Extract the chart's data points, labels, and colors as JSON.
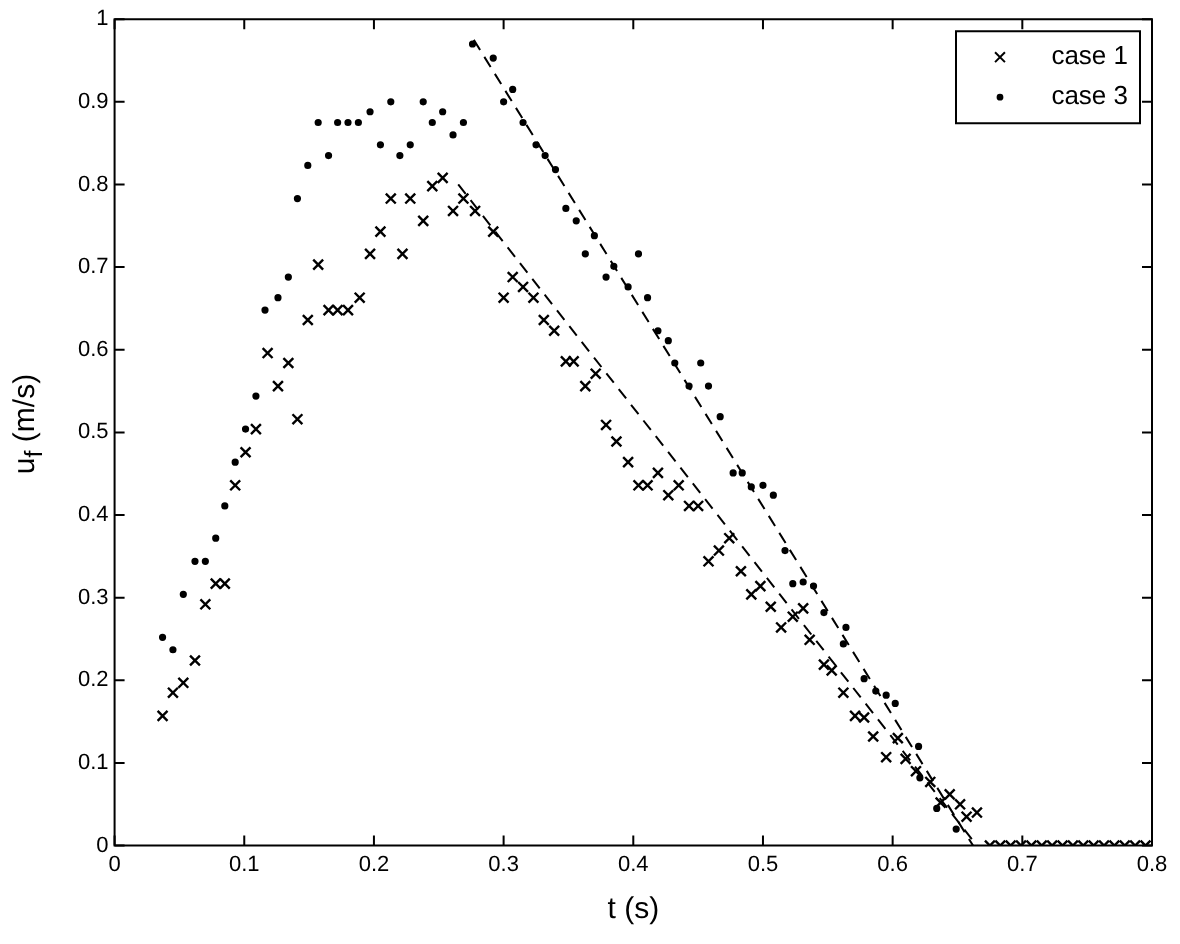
{
  "chart_data": {
    "type": "scatter",
    "xlabel": "t (s)",
    "ylabel": "u$_{f}$ (m/s)",
    "xlim": [
      0,
      0.8
    ],
    "xticks": [
      0,
      0.1,
      0.2,
      0.3,
      0.4,
      0.5,
      0.6,
      0.7,
      0.8
    ],
    "ylim": [
      0,
      1
    ],
    "yticks": [
      0,
      0.1,
      0.2,
      0.3,
      0.4,
      0.5,
      0.6,
      0.7,
      0.8,
      0.9,
      1
    ],
    "grid": false,
    "legend": "top right",
    "series": [
      {
        "name": "case 1",
        "marker": "cross",
        "color": "#000000",
        "x": [
          0.037,
          0.045,
          0.053,
          0.062,
          0.07,
          0.078,
          0.085,
          0.093,
          0.101,
          0.109,
          0.118,
          0.126,
          0.134,
          0.141,
          0.149,
          0.157,
          0.165,
          0.172,
          0.18,
          0.189,
          0.197,
          0.205,
          0.213,
          0.222,
          0.228,
          0.238,
          0.245,
          0.253,
          0.261,
          0.269,
          0.278,
          0.292,
          0.3,
          0.307,
          0.315,
          0.323,
          0.331,
          0.339,
          0.348,
          0.354,
          0.363,
          0.371,
          0.379,
          0.387,
          0.396,
          0.404,
          0.411,
          0.419,
          0.427,
          0.435,
          0.443,
          0.45,
          0.458,
          0.466,
          0.474,
          0.483,
          0.491,
          0.498,
          0.506,
          0.514,
          0.523,
          0.531,
          0.536,
          0.547,
          0.553,
          0.562,
          0.571,
          0.578,
          0.585,
          0.595,
          0.604,
          0.61,
          0.618,
          0.629,
          0.637,
          0.644,
          0.652,
          0.657,
          0.665,
          0.675,
          0.683,
          0.691,
          0.699,
          0.707,
          0.715,
          0.723,
          0.731,
          0.739,
          0.747,
          0.755,
          0.763,
          0.771,
          0.779,
          0.787,
          0.795
        ],
        "values": [
          0.157,
          0.185,
          0.197,
          0.224,
          0.292,
          0.317,
          0.317,
          0.436,
          0.476,
          0.504,
          0.596,
          0.556,
          0.584,
          0.516,
          0.636,
          0.703,
          0.648,
          0.648,
          0.648,
          0.663,
          0.716,
          0.743,
          0.783,
          0.716,
          0.783,
          0.756,
          0.798,
          0.808,
          0.768,
          0.783,
          0.768,
          0.743,
          0.663,
          0.688,
          0.676,
          0.663,
          0.636,
          0.623,
          0.586,
          0.586,
          0.556,
          0.571,
          0.509,
          0.489,
          0.464,
          0.436,
          0.436,
          0.451,
          0.424,
          0.436,
          0.411,
          0.411,
          0.344,
          0.357,
          0.372,
          0.332,
          0.304,
          0.314,
          0.289,
          0.264,
          0.277,
          0.287,
          0.249,
          0.219,
          0.212,
          0.185,
          0.157,
          0.155,
          0.132,
          0.107,
          0.13,
          0.105,
          0.09,
          0.077,
          0.052,
          0.062,
          0.05,
          0.035,
          0.04,
          0,
          0,
          0,
          0,
          0,
          0,
          0,
          0,
          0,
          0,
          0,
          0,
          0,
          0,
          0,
          0
        ]
      },
      {
        "name": "case 3",
        "marker": "circle",
        "color": "#000000",
        "x": [
          0.037,
          0.045,
          0.053,
          0.062,
          0.07,
          0.078,
          0.085,
          0.093,
          0.101,
          0.109,
          0.116,
          0.126,
          0.134,
          0.141,
          0.149,
          0.157,
          0.165,
          0.172,
          0.18,
          0.188,
          0.197,
          0.205,
          0.213,
          0.22,
          0.228,
          0.238,
          0.245,
          0.253,
          0.261,
          0.269,
          0.276,
          0.292,
          0.3,
          0.307,
          0.315,
          0.325,
          0.332,
          0.34,
          0.348,
          0.356,
          0.363,
          0.37,
          0.379,
          0.385,
          0.396,
          0.404,
          0.411,
          0.419,
          0.427,
          0.432,
          0.443,
          0.452,
          0.458,
          0.467,
          0.477,
          0.484,
          0.491,
          0.5,
          0.508,
          0.517,
          0.523,
          0.531,
          0.539,
          0.547,
          0.562,
          0.564,
          0.578,
          0.587,
          0.595,
          0.602,
          0.62,
          0.621,
          0.634,
          0.649
        ],
        "values": [
          0.252,
          0.237,
          0.304,
          0.344,
          0.344,
          0.372,
          0.411,
          0.464,
          0.504,
          0.544,
          0.648,
          0.663,
          0.688,
          0.783,
          0.823,
          0.875,
          0.835,
          0.875,
          0.875,
          0.875,
          0.888,
          0.848,
          0.9,
          0.835,
          0.848,
          0.9,
          0.875,
          0.888,
          0.86,
          0.875,
          0.97,
          0.953,
          0.9,
          0.915,
          0.875,
          0.848,
          0.835,
          0.818,
          0.771,
          0.756,
          0.716,
          0.738,
          0.688,
          0.701,
          0.676,
          0.716,
          0.663,
          0.623,
          0.611,
          0.584,
          0.556,
          0.584,
          0.556,
          0.519,
          0.451,
          0.451,
          0.434,
          0.436,
          0.424,
          0.357,
          0.317,
          0.319,
          0.314,
          0.282,
          0.244,
          0.264,
          0.202,
          0.187,
          0.182,
          0.172,
          0.12,
          0.082,
          0.045,
          0.02
        ]
      },
      {
        "type": "line",
        "marker": "none",
        "line_style": "dashed",
        "color": "#000000",
        "x": [
          0.265,
          0.665
        ],
        "values": [
          0.8,
          0
        ]
      },
      {
        "type": "line",
        "marker": "none",
        "line_style": "dashed",
        "color": "#000000",
        "x": [
          0.277,
          0.662
        ],
        "values": [
          0.975,
          0
        ]
      }
    ]
  }
}
